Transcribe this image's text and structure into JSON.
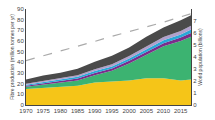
{
  "chart_data": {
    "type": "area",
    "stacked": true,
    "x": [
      1970,
      1975,
      1980,
      1985,
      1990,
      1995,
      2000,
      2005,
      2010,
      2015,
      2018
    ],
    "series": [
      {
        "color": "#F5C518",
        "values": [
          15,
          16,
          17,
          18,
          21,
          22,
          23,
          25,
          25,
          23,
          24
        ]
      },
      {
        "color": "#3CB371",
        "values": [
          2,
          3,
          4,
          5,
          7,
          10,
          16,
          22,
          30,
          37,
          40
        ]
      },
      {
        "color": "#7B2D8B",
        "values": [
          1,
          1.2,
          1.5,
          1.8,
          2.0,
          2.2,
          2.5,
          2.8,
          3.0,
          3.2,
          3.5
        ]
      },
      {
        "color": "#29A8D8",
        "values": [
          1,
          1.2,
          1.4,
          1.6,
          1.8,
          2.0,
          2.2,
          2.5,
          2.8,
          3.0,
          3.2
        ]
      },
      {
        "color": "#B0A0CC",
        "values": [
          1,
          1.2,
          1.4,
          1.6,
          1.8,
          2.0,
          2.3,
          2.6,
          2.9,
          3.2,
          3.5
        ]
      },
      {
        "color": "#4A4A4A",
        "values": [
          4,
          5,
          5,
          6,
          7,
          8,
          8,
          9,
          9,
          10,
          10
        ]
      },
      {
        "type": "line",
        "axis": "y2",
        "color": "#AAAAAA",
        "line_style": "dashed",
        "values": [
          3.7,
          4.1,
          4.45,
          4.85,
          5.3,
          5.72,
          6.1,
          6.5,
          6.9,
          7.35,
          7.6
        ]
      }
    ],
    "xlim": [
      1970,
      2018
    ],
    "xticks": [
      1970,
      1975,
      1980,
      1985,
      1990,
      1995,
      2000,
      2005,
      2010,
      2015
    ],
    "ylim": [
      0,
      90
    ],
    "yticks": [
      0,
      10,
      20,
      30,
      40,
      50,
      60,
      70,
      80,
      90
    ],
    "y2lim": [
      0,
      8
    ],
    "y2ticks": [
      0,
      1,
      2,
      3,
      4,
      5,
      6,
      7
    ],
    "ylabel": "Fibre production (million tonnes per yr)",
    "y2label": "World population (billions)",
    "grid": false
  }
}
